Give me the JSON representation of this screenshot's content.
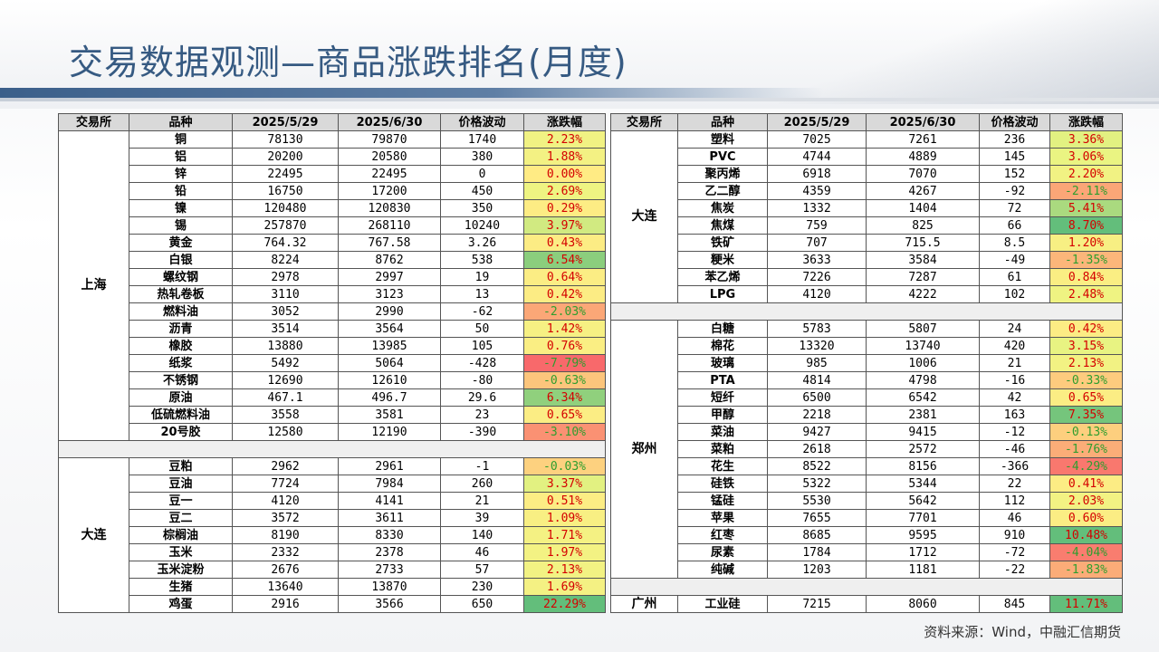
{
  "title": "交易数据观测—商品涨跌排名(月度)",
  "source": "资料来源：Wind，中融汇信期货",
  "headers": [
    "交易所",
    "品种",
    "2025/5/29",
    "2025/6/30",
    "价格波动",
    "涨跌幅"
  ],
  "left": [
    {
      "exchange": "上海",
      "rows": [
        [
          "铜",
          "78130",
          "79870",
          "1740",
          "2.23%"
        ],
        [
          "铝",
          "20200",
          "20580",
          "380",
          "1.88%"
        ],
        [
          "锌",
          "22495",
          "22495",
          "0",
          "0.00%"
        ],
        [
          "铅",
          "16750",
          "17200",
          "450",
          "2.69%"
        ],
        [
          "镍",
          "120480",
          "120830",
          "350",
          "0.29%"
        ],
        [
          "锡",
          "257870",
          "268110",
          "10240",
          "3.97%"
        ],
        [
          "黄金",
          "764.32",
          "767.58",
          "3.26",
          "0.43%"
        ],
        [
          "白银",
          "8224",
          "8762",
          "538",
          "6.54%"
        ],
        [
          "螺纹钢",
          "2978",
          "2997",
          "19",
          "0.64%"
        ],
        [
          "热轧卷板",
          "3110",
          "3123",
          "13",
          "0.42%"
        ],
        [
          "燃料油",
          "3052",
          "2990",
          "-62",
          "-2.03%"
        ],
        [
          "沥青",
          "3514",
          "3564",
          "50",
          "1.42%"
        ],
        [
          "橡胶",
          "13880",
          "13985",
          "105",
          "0.76%"
        ],
        [
          "纸浆",
          "5492",
          "5064",
          "-428",
          "-7.79%"
        ],
        [
          "不锈钢",
          "12690",
          "12610",
          "-80",
          "-0.63%"
        ],
        [
          "原油",
          "467.1",
          "496.7",
          "29.6",
          "6.34%"
        ],
        [
          "低硫燃料油",
          "3558",
          "3581",
          "23",
          "0.65%"
        ],
        [
          "20号胶",
          "12580",
          "12190",
          "-390",
          "-3.10%"
        ]
      ]
    },
    {
      "exchange": "大连",
      "rows": [
        [
          "豆粕",
          "2962",
          "2961",
          "-1",
          "-0.03%"
        ],
        [
          "豆油",
          "7724",
          "7984",
          "260",
          "3.37%"
        ],
        [
          "豆一",
          "4120",
          "4141",
          "21",
          "0.51%"
        ],
        [
          "豆二",
          "3572",
          "3611",
          "39",
          "1.09%"
        ],
        [
          "棕榈油",
          "8190",
          "8330",
          "140",
          "1.71%"
        ],
        [
          "玉米",
          "2332",
          "2378",
          "46",
          "1.97%"
        ],
        [
          "玉米淀粉",
          "2676",
          "2733",
          "57",
          "2.13%"
        ],
        [
          "生猪",
          "13640",
          "13870",
          "230",
          "1.69%"
        ],
        [
          "鸡蛋",
          "2916",
          "3566",
          "650",
          "22.29%"
        ]
      ]
    }
  ],
  "right": [
    {
      "exchange": "大连",
      "rows": [
        [
          "塑料",
          "7025",
          "7261",
          "236",
          "3.36%"
        ],
        [
          "PVC",
          "4744",
          "4889",
          "145",
          "3.06%"
        ],
        [
          "聚丙烯",
          "6918",
          "7070",
          "152",
          "2.20%"
        ],
        [
          "乙二醇",
          "4359",
          "4267",
          "-92",
          "-2.11%"
        ],
        [
          "焦炭",
          "1332",
          "1404",
          "72",
          "5.41%"
        ],
        [
          "焦煤",
          "759",
          "825",
          "66",
          "8.70%"
        ],
        [
          "铁矿",
          "707",
          "715.5",
          "8.5",
          "1.20%"
        ],
        [
          "粳米",
          "3633",
          "3584",
          "-49",
          "-1.35%"
        ],
        [
          "苯乙烯",
          "7226",
          "7287",
          "61",
          "0.84%"
        ],
        [
          "LPG",
          "4120",
          "4222",
          "102",
          "2.48%"
        ]
      ]
    },
    {
      "exchange": "郑州",
      "rows": [
        [
          "白糖",
          "5783",
          "5807",
          "24",
          "0.42%"
        ],
        [
          "棉花",
          "13320",
          "13740",
          "420",
          "3.15%"
        ],
        [
          "玻璃",
          "985",
          "1006",
          "21",
          "2.13%"
        ],
        [
          "PTA",
          "4814",
          "4798",
          "-16",
          "-0.33%"
        ],
        [
          "短纤",
          "6500",
          "6542",
          "42",
          "0.65%"
        ],
        [
          "甲醇",
          "2218",
          "2381",
          "163",
          "7.35%"
        ],
        [
          "菜油",
          "9427",
          "9415",
          "-12",
          "-0.13%"
        ],
        [
          "菜粕",
          "2618",
          "2572",
          "-46",
          "-1.76%"
        ],
        [
          "花生",
          "8522",
          "8156",
          "-366",
          "-4.29%"
        ],
        [
          "硅铁",
          "5322",
          "5344",
          "22",
          "0.41%"
        ],
        [
          "锰硅",
          "5530",
          "5642",
          "112",
          "2.03%"
        ],
        [
          "苹果",
          "7655",
          "7701",
          "46",
          "0.60%"
        ],
        [
          "红枣",
          "8685",
          "9595",
          "910",
          "10.48%"
        ],
        [
          "尿素",
          "1784",
          "1712",
          "-72",
          "-4.04%"
        ],
        [
          "纯碱",
          "1203",
          "1181",
          "-22",
          "-1.83%"
        ]
      ]
    },
    {
      "exchange": "广州",
      "rows": [
        [
          "工业硅",
          "7215",
          "8060",
          "845",
          "11.71%"
        ]
      ]
    }
  ],
  "colors": {
    "positive_text": "#d40000",
    "negative_text": "#2e9e2e",
    "title": "#365a82"
  }
}
